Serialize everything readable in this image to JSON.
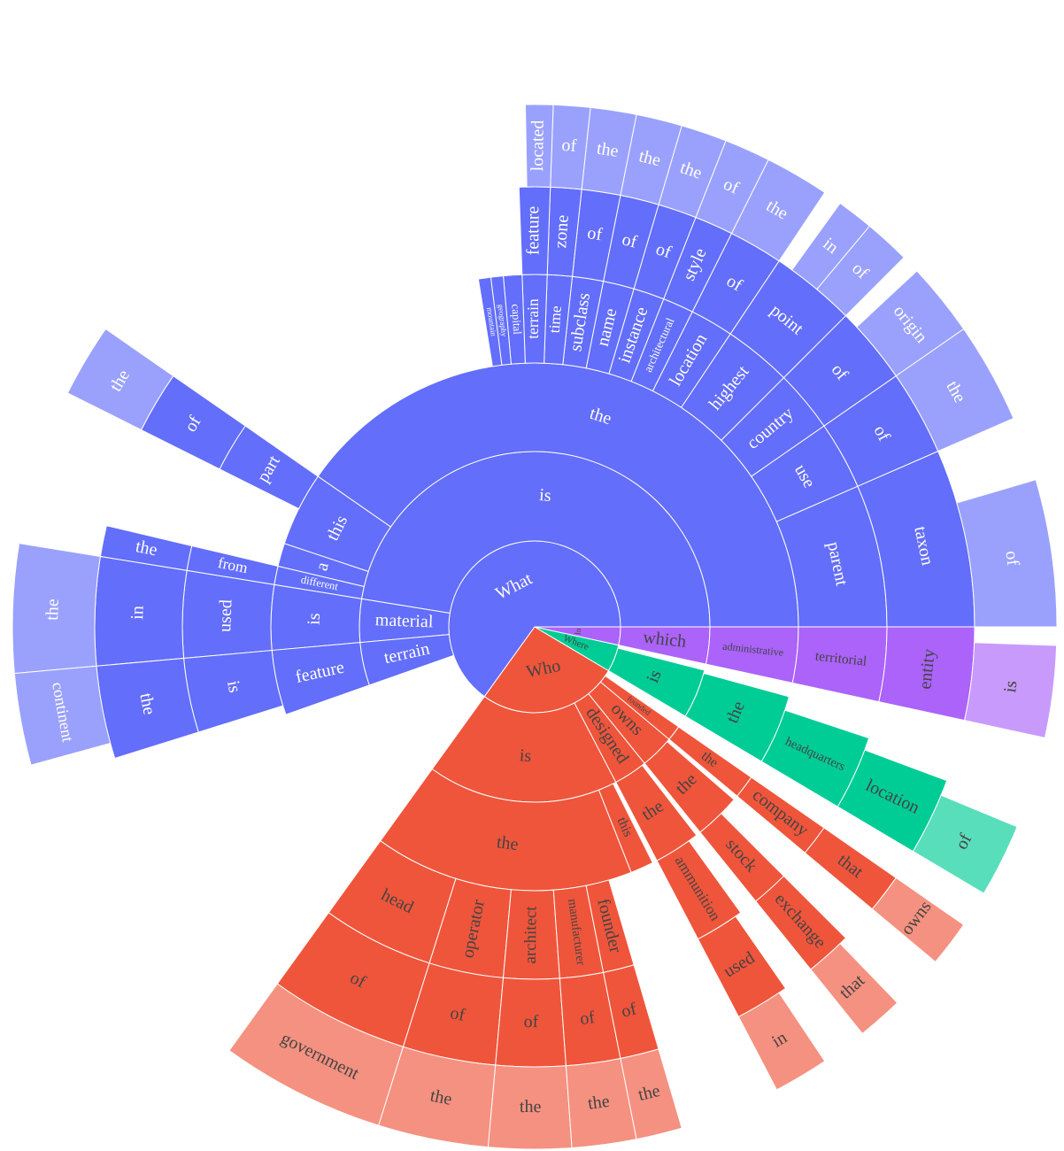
{
  "chart_data": {
    "type": "sunburst",
    "nodes": [
      {
        "label": "What",
        "value": 229,
        "color": "#636efa",
        "label_color": "#ffffff",
        "children": [
          {
            "label": "is",
            "value": 167,
            "children": [
              {
                "label": "the",
                "value": 142,
                "children": [
                  {
                    "label": "parent",
                    "value": 23,
                    "children": [
                      {
                        "label": "taxon",
                        "value": 23,
                        "children": [
                          {
                            "label": "of",
                            "value": 16
                          }
                        ]
                      }
                    ]
                  },
                  {
                    "label": "use",
                    "value": 11,
                    "children": [
                      {
                        "label": "of",
                        "value": 11,
                        "children": [
                          {
                            "label": "the",
                            "value": 11
                          }
                        ]
                      }
                    ]
                  },
                  {
                    "label": "country",
                    "value": 10,
                    "children": [
                      {
                        "label": "of",
                        "value": 10,
                        "children": [
                          {
                            "label": "origin",
                            "value": 8
                          }
                        ]
                      }
                    ]
                  },
                  {
                    "label": "highest",
                    "value": 11,
                    "children": [
                      {
                        "label": "point",
                        "value": 11,
                        "children": [
                          {
                            "label": "of",
                            "value": 5
                          },
                          {
                            "label": "in",
                            "value": 4
                          }
                        ]
                      }
                    ]
                  },
                  {
                    "label": "location",
                    "value": 7,
                    "children": [
                      {
                        "label": "of",
                        "value": 7,
                        "children": [
                          {
                            "label": "the",
                            "value": 7
                          }
                        ]
                      }
                    ]
                  },
                  {
                    "label": "architectural",
                    "value": 5,
                    "children": [
                      {
                        "label": "style",
                        "value": 5,
                        "children": [
                          {
                            "label": "of",
                            "value": 5
                          }
                        ]
                      }
                    ]
                  },
                  {
                    "label": "instance",
                    "value": 5,
                    "children": [
                      {
                        "label": "of",
                        "value": 5,
                        "children": [
                          {
                            "label": "the",
                            "value": 5
                          }
                        ]
                      }
                    ]
                  },
                  {
                    "label": "name",
                    "value": 5,
                    "children": [
                      {
                        "label": "of",
                        "value": 5,
                        "children": [
                          {
                            "label": "the",
                            "value": 5
                          }
                        ]
                      }
                    ]
                  },
                  {
                    "label": "subclass",
                    "value": 5,
                    "children": [
                      {
                        "label": "of",
                        "value": 5,
                        "children": [
                          {
                            "label": "the",
                            "value": 5
                          }
                        ]
                      }
                    ]
                  },
                  {
                    "label": "time",
                    "value": 4,
                    "children": [
                      {
                        "label": "zone",
                        "value": 4,
                        "children": [
                          {
                            "label": "of",
                            "value": 4
                          }
                        ]
                      }
                    ]
                  },
                  {
                    "label": "terrain",
                    "value": 4,
                    "children": [
                      {
                        "label": "feature",
                        "value": 4,
                        "children": [
                          {
                            "label": "located",
                            "value": 3
                          }
                        ]
                      }
                    ]
                  },
                  {
                    "label": "capital",
                    "value": 3
                  },
                  {
                    "label": "geography",
                    "value": 2
                  },
                  {
                    "label": "mountain",
                    "value": 2
                  }
                ]
              },
              {
                "label": "this",
                "value": 16,
                "children": [
                  {
                    "label": "part",
                    "value": 8,
                    "children": [
                      {
                        "label": "of",
                        "value": 8,
                        "children": [
                          {
                            "label": "the",
                            "value": 8
                          }
                        ]
                      }
                    ]
                  }
                ]
              },
              {
                "label": "a",
                "value": 5
              },
              {
                "label": "different",
                "value": 4,
                "children": [
                  {
                    "label": "from",
                    "value": 4,
                    "children": [
                      {
                        "label": "the",
                        "value": 4
                      }
                    ]
                  }
                ]
              }
            ]
          },
          {
            "label": "material",
            "value": 14,
            "children": [
              {
                "label": "is",
                "value": 14,
                "children": [
                  {
                    "label": "used",
                    "value": 14,
                    "children": [
                      {
                        "label": "in",
                        "value": 14,
                        "children": [
                          {
                            "label": "the",
                            "value": 14
                          }
                        ]
                      }
                    ]
                  }
                ]
              }
            ]
          },
          {
            "label": "terrain",
            "value": 14,
            "children": [
              {
                "label": "feature",
                "value": 14,
                "children": [
                  {
                    "label": "is",
                    "value": 12,
                    "children": [
                      {
                        "label": "the",
                        "value": 12,
                        "children": [
                          {
                            "label": "continent",
                            "value": 10
                          }
                        ]
                      }
                    ]
                  }
                ]
              }
            ]
          }
        ]
      },
      {
        "label": "Who",
        "value": 93,
        "color": "#ef553b",
        "label_color": "#444444",
        "children": [
          {
            "label": "is",
            "value": 62,
            "children": [
              {
                "label": "the",
                "value": 56,
                "children": [
                  {
                    "label": "head",
                    "value": 18,
                    "children": [
                      {
                        "label": "of",
                        "value": 18,
                        "children": [
                          {
                            "label": "government",
                            "value": 18
                          }
                        ]
                      }
                    ]
                  },
                  {
                    "label": "operator",
                    "value": 12,
                    "children": [
                      {
                        "label": "of",
                        "value": 12,
                        "children": [
                          {
                            "label": "the",
                            "value": 12
                          }
                        ]
                      }
                    ]
                  },
                  {
                    "label": "architect",
                    "value": 9,
                    "children": [
                      {
                        "label": "of",
                        "value": 9,
                        "children": [
                          {
                            "label": "the",
                            "value": 9
                          }
                        ]
                      }
                    ]
                  },
                  {
                    "label": "manufacturer",
                    "value": 7,
                    "children": [
                      {
                        "label": "of",
                        "value": 7,
                        "children": [
                          {
                            "label": "the",
                            "value": 7
                          }
                        ]
                      }
                    ]
                  },
                  {
                    "label": "founder",
                    "value": 5,
                    "children": [
                      {
                        "label": "of",
                        "value": 5,
                        "children": [
                          {
                            "label": "the",
                            "value": 5
                          }
                        ]
                      }
                    ]
                  }
                ]
              },
              {
                "label": "this",
                "value": 5
              }
            ]
          },
          {
            "label": "designed",
            "value": 11,
            "children": [
              {
                "label": "the",
                "value": 10,
                "children": [
                  {
                    "label": "ammunition",
                    "value": 8,
                    "children": [
                      {
                        "label": "used",
                        "value": 7,
                        "children": [
                          {
                            "label": "in",
                            "value": 6
                          }
                        ]
                      }
                    ]
                  }
                ]
              }
            ]
          },
          {
            "label": "owns",
            "value": 11,
            "children": [
              {
                "label": "the",
                "value": 10,
                "children": [
                  {
                    "label": "stock",
                    "value": 6,
                    "children": [
                      {
                        "label": "exchange",
                        "value": 6,
                        "children": [
                          {
                            "label": "that",
                            "value": 5
                          }
                        ]
                      }
                    ]
                  }
                ]
              }
            ]
          },
          {
            "label": "founded",
            "value": 5,
            "children": [
              {
                "label": "the",
                "value": 5,
                "children": [
                  {
                    "label": "company",
                    "value": 5,
                    "children": [
                      {
                        "label": "that",
                        "value": 5,
                        "children": [
                          {
                            "label": "owns",
                            "value": 5
                          }
                        ]
                      }
                    ]
                  }
                ]
              }
            ]
          }
        ]
      },
      {
        "label": "Where",
        "value": 18,
        "color": "#00cc96",
        "label_color": "#444444",
        "children": [
          {
            "label": "is",
            "value": 16,
            "children": [
              {
                "label": "the",
                "value": 15,
                "children": [
                  {
                    "label": "headquarters",
                    "value": 12,
                    "children": [
                      {
                        "label": "location",
                        "value": 10,
                        "children": [
                          {
                            "label": "of",
                            "value": 8
                          }
                        ]
                      }
                    ]
                  }
                ]
              }
            ]
          }
        ]
      },
      {
        "label": "In",
        "value": 12,
        "color": "#ab63fa",
        "label_color": "#444444",
        "children": [
          {
            "label": "which",
            "value": 12,
            "children": [
              {
                "label": "administrative",
                "value": 12,
                "children": [
                  {
                    "label": "territorial",
                    "value": 12,
                    "children": [
                      {
                        "label": "entity",
                        "value": 12,
                        "children": [
                          {
                            "label": "is",
                            "value": 10
                          }
                        ]
                      }
                    ]
                  }
                ]
              }
            ]
          }
        ]
      }
    ]
  }
}
